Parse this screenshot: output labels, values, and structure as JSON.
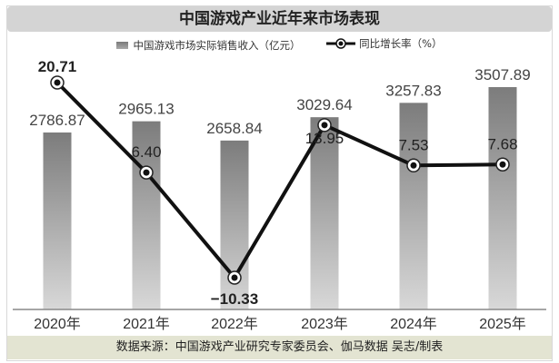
{
  "title": "中国游戏产业近年来市场表现",
  "legend": {
    "bar_label": "中国游戏市场实际销售收入（亿元）",
    "line_label": "同比增长率（%）"
  },
  "footer": "数据来源：中国游戏产业研究专家委员会、伽马数据 吴志/制表",
  "colors": {
    "bar_top": "#7c7c7c",
    "bar_bottom": "#d8d8d8",
    "line": "#111111",
    "title_bg": "#d4d4d4",
    "footer_bg": "#e3e4d2"
  },
  "chart_data": {
    "type": "bar+line",
    "title": "中国游戏产业近年来市场表现",
    "categories": [
      "2020年",
      "2021年",
      "2022年",
      "2023年",
      "2024年",
      "2025年"
    ],
    "series": [
      {
        "name": "中国游戏市场实际销售收入（亿元）",
        "type": "bar",
        "values": [
          2786.87,
          2965.13,
          2658.84,
          3029.64,
          3257.83,
          3507.89
        ],
        "labels": [
          "2786.87",
          "2965.13",
          "2658.84",
          "3029.64",
          "3257.83",
          "3507.89"
        ]
      },
      {
        "name": "同比增长率（%）",
        "type": "line",
        "values": [
          20.71,
          6.4,
          -10.33,
          13.95,
          7.53,
          7.68
        ],
        "labels": [
          "20.71",
          "6.40",
          "−10.33",
          "13.95",
          "7.53",
          "7.68"
        ]
      }
    ],
    "xlabel": "",
    "ylabel": "",
    "grid": false,
    "legend_position": "top",
    "source": "数据来源：中国游戏产业研究专家委员会、伽马数据 吴志/制表"
  }
}
